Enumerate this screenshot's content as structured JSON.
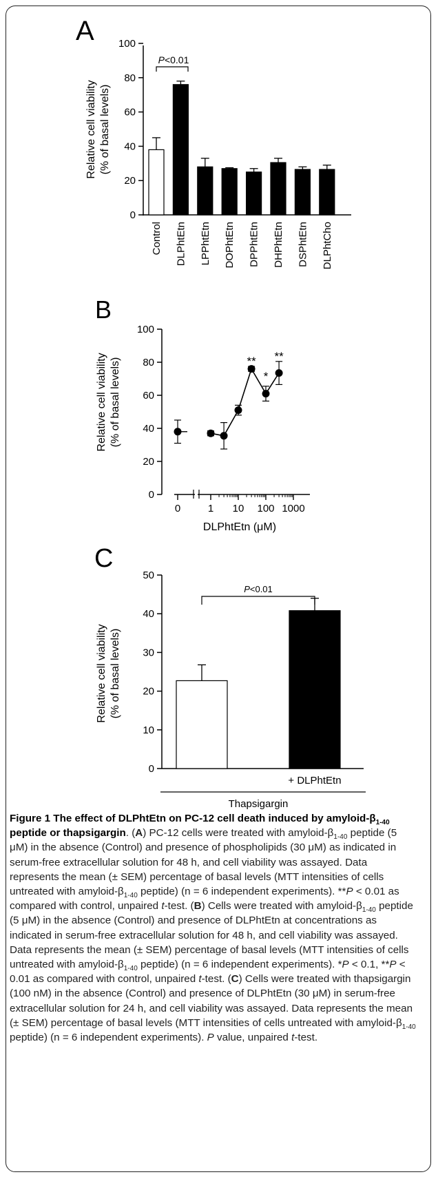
{
  "chart_data": [
    {
      "type": "bar",
      "panel": "A",
      "categories": [
        "Control",
        "DLPhtEtn",
        "LPPhtEtn",
        "DOPhtEtn",
        "DPPhtEtn",
        "DHPhtEtn",
        "DSPhtEtn",
        "DLPhtCho"
      ],
      "values": [
        38,
        76,
        28,
        27,
        25,
        30.5,
        26.5,
        26.5
      ],
      "errors": [
        7,
        2,
        5,
        0.5,
        2,
        2.5,
        1.5,
        2.5
      ],
      "fills": [
        "#ffffff",
        "#000000",
        "#000000",
        "#000000",
        "#000000",
        "#000000",
        "#000000",
        "#000000"
      ],
      "ylabel_1": "Relative cell viability",
      "ylabel_2": "(% of basal levels)",
      "ylim": [
        0,
        100
      ],
      "yticks": [
        0,
        20,
        40,
        60,
        80,
        100
      ],
      "annotation": {
        "P": "P",
        "rest": "<0.01",
        "between": [
          "Control",
          "DLPhtEtn"
        ]
      }
    },
    {
      "type": "line",
      "panel": "B",
      "x": [
        0,
        1,
        3,
        10,
        30,
        100,
        300
      ],
      "y": [
        38,
        37,
        35.5,
        51,
        76,
        61,
        73.5
      ],
      "errors": [
        7,
        1.5,
        8,
        3,
        1.5,
        4.5,
        7
      ],
      "marks": [
        "",
        "",
        "",
        "",
        "**",
        "*",
        "**"
      ],
      "xlabel": "DLPhtEtn (μM)",
      "xscale": "log (with broken axis at 0)",
      "xticks": [
        "0",
        "1",
        "10",
        "100",
        "1000"
      ],
      "ylabel_1": "Relative cell viability",
      "ylabel_2": "(% of basal levels)",
      "ylim": [
        0,
        100
      ],
      "yticks": [
        0,
        20,
        40,
        60,
        80,
        100
      ]
    },
    {
      "type": "bar",
      "panel": "C",
      "categories": [
        "",
        "+ DLPhtEtn"
      ],
      "values": [
        22.7,
        40.8
      ],
      "errors": [
        4.1,
        3.2
      ],
      "fills": [
        "#ffffff",
        "#000000"
      ],
      "group_label": "Thapsigargin",
      "ylabel_1": "Relative cell viability",
      "ylabel_2": "(% of basal levels)",
      "ylim": [
        0,
        50
      ],
      "yticks": [
        0,
        10,
        20,
        30,
        40,
        50
      ],
      "annotation": {
        "P": "P",
        "rest": "<0.01"
      }
    }
  ],
  "caption": {
    "title_1": "Figure 1 The effect of DLPhtEtn on PC-12 cell death induced by",
    "title_2": "amyloid-β",
    "title_sub": "1-40",
    "title_3": " peptide or thapsigargin",
    "title_end": ". (",
    "A": "A",
    "A_text_1": ") PC-12 cells were treated with amyloid-β",
    "sub": "1-40",
    "A_text_2": " peptide (5 μM) in the absence (Control) and presence of phospholipids (30 μM) as indicated in serum-free extracellular solution for 48 h, and cell viability was assayed. Data represents the mean (± SEM) percentage of basal levels (MTT intensities of cells untreated with amyloid-β",
    "A_text_3": " peptide) (n = 6 independent experiments). **",
    "P": "P",
    "A_text_4": " < 0.01 as compared with control, unpaired ",
    "t": "t",
    "test_end": "-test. (",
    "B": "B",
    "B_text_1": ") Cells were treated with amyloid-β",
    "B_text_2": " peptide (5 μM) in the absence (Control) and presence of DLPhtEtn at concentrations as indicated in serum-free extracellular solution for 48 h, and cell viability was assayed. Data represents the mean (± SEM) percentage of basal levels (MTT intensities of cells untreated with amyloid-β",
    "B_text_3": " peptide) (n = 6 independent experiments). *",
    "B_text_4": " < 0.1, **",
    "C": "C",
    "C_text_1": ") Cells were treated with thapsigargin (100 nM) in the absence (Control) and presence of DLPhtEtn (30 μM) in serum-free extracellular solution for 24 h, and cell viability was assayed. Data represents the mean (± SEM) percentage of basal levels (MTT intensities of cells untreated with amyloid-β",
    "C_text_2": " peptide) (n = 6 independent experiments). ",
    "C_text_3": " value, unpaired ",
    "final": "-test."
  }
}
